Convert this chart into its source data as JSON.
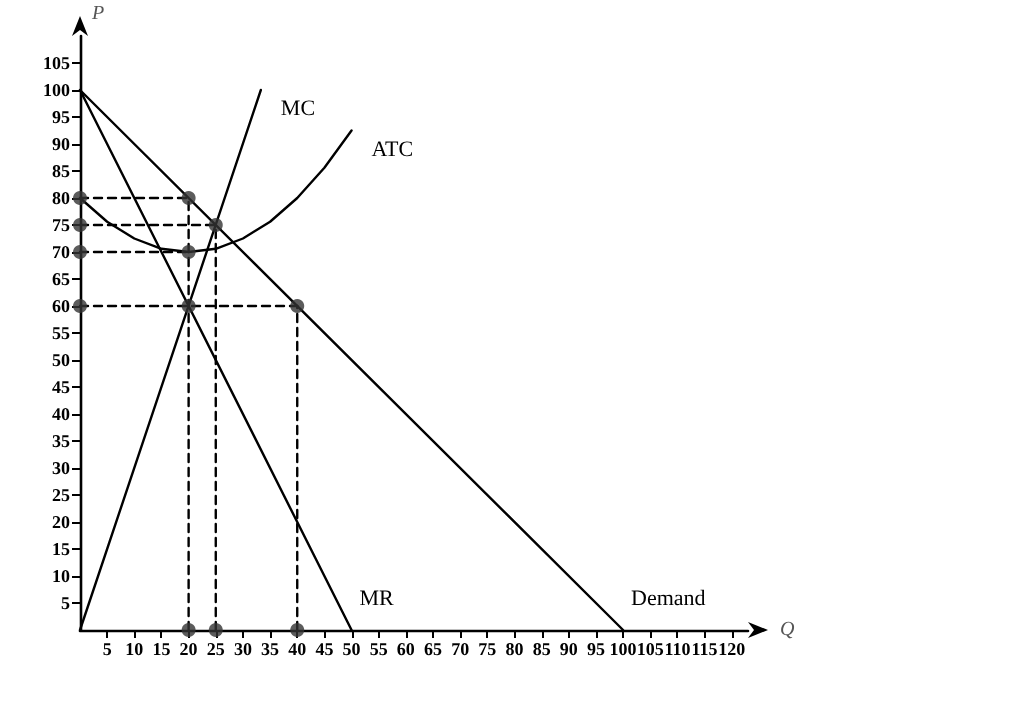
{
  "chart_data": {
    "type": "line",
    "xlabel": "Q",
    "ylabel": "P",
    "xlim": [
      0,
      123
    ],
    "ylim": [
      0,
      110
    ],
    "xticks": [
      5,
      10,
      15,
      20,
      25,
      30,
      35,
      40,
      45,
      50,
      55,
      60,
      65,
      70,
      75,
      80,
      85,
      90,
      95,
      100,
      105,
      110,
      115,
      120
    ],
    "yticks": [
      5,
      10,
      15,
      20,
      25,
      30,
      35,
      40,
      45,
      50,
      55,
      60,
      65,
      70,
      75,
      80,
      85,
      90,
      95,
      100,
      105
    ],
    "grid": false,
    "legend": false,
    "series": [
      {
        "name": "MC",
        "color": "#000000",
        "line_style": "solid",
        "x": [
          0,
          33.3
        ],
        "values": [
          0,
          100
        ]
      },
      {
        "name": "ATC",
        "color": "#000000",
        "line_style": "solid",
        "x": [
          0,
          5,
          10,
          15,
          20,
          25,
          30,
          35,
          40,
          45,
          50
        ],
        "values": [
          80,
          75.6,
          72.5,
          70.6,
          70,
          70.6,
          72.5,
          75.6,
          80,
          85.6,
          92.5
        ]
      },
      {
        "name": "MR",
        "color": "#000000",
        "line_style": "solid",
        "x": [
          0,
          50
        ],
        "values": [
          100,
          0
        ]
      },
      {
        "name": "Demand",
        "color": "#000000",
        "line_style": "solid",
        "x": [
          0,
          100
        ],
        "values": [
          100,
          0
        ]
      },
      {
        "color": "#000000",
        "line_style": "dashed",
        "x": [
          0,
          20
        ],
        "values": [
          80,
          80
        ]
      },
      {
        "color": "#000000",
        "line_style": "dashed",
        "x": [
          0,
          25
        ],
        "values": [
          75,
          75
        ]
      },
      {
        "color": "#000000",
        "line_style": "dashed",
        "x": [
          0,
          20
        ],
        "values": [
          70,
          70
        ]
      },
      {
        "color": "#000000",
        "line_style": "dashed",
        "x": [
          0,
          40
        ],
        "values": [
          60,
          60
        ]
      },
      {
        "color": "#000000",
        "line_style": "dashed",
        "x": [
          20,
          20
        ],
        "values": [
          0,
          80
        ]
      },
      {
        "color": "#000000",
        "line_style": "dashed",
        "x": [
          25,
          25
        ],
        "values": [
          0,
          75
        ]
      },
      {
        "color": "#000000",
        "line_style": "dashed",
        "x": [
          40,
          40
        ],
        "values": [
          0,
          60
        ]
      },
      {
        "type": "scatter",
        "color": "#333333",
        "marker": "circle",
        "x": [
          0,
          0,
          0,
          0,
          20,
          25,
          20,
          20,
          40,
          20,
          25,
          40
        ],
        "values": [
          80,
          75,
          70,
          60,
          80,
          75,
          70,
          60,
          60,
          0,
          0,
          0
        ]
      }
    ]
  }
}
